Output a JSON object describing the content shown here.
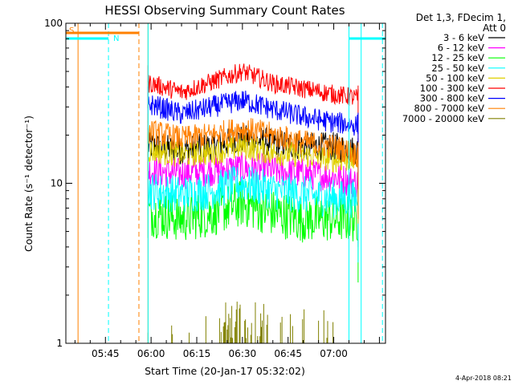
{
  "chart_data": {
    "type": "line",
    "title": "HESSI Observing Summary Count Rates",
    "xlabel": "Start Time (20-Jan-17 05:32:02)",
    "ylabel": "Count Rate (s⁻¹ detector⁻¹)",
    "yscale": "log",
    "ylim": [
      1,
      100
    ],
    "xlim": [
      "05:32",
      "07:17"
    ],
    "y_ticks": [
      "1",
      "10",
      "100"
    ],
    "x_ticks": [
      "05:45",
      "06:00",
      "06:15",
      "06:30",
      "06:45",
      "07:00"
    ],
    "legend_title": [
      "Det 1,3, FDecim 1,",
      "Att 0"
    ],
    "legend_position": "right",
    "timestamp": "4-Apr-2018 08:21",
    "flags": [
      {
        "label": "S",
        "color": "#ff8000",
        "x_start": "05:32",
        "x_end": "05:56"
      },
      {
        "label": "N",
        "color": "#00ffff",
        "x_start": "05:32",
        "x_end": "05:46"
      },
      {
        "label": "",
        "color": "#00ffff",
        "x_start": "07:05",
        "x_end": "07:17"
      }
    ],
    "vertical_lines": [
      {
        "time": "05:36",
        "color": "#ff8000",
        "style": "solid"
      },
      {
        "time": "05:46",
        "color": "#00ffff",
        "style": "dashed"
      },
      {
        "time": "05:56",
        "color": "#ff8000",
        "style": "dashed"
      },
      {
        "time": "05:59",
        "color": "#ff8000",
        "style": "solid"
      },
      {
        "time": "05:59",
        "color": "#00ffff",
        "style": "solid"
      },
      {
        "time": "07:05",
        "color": "#00ffff",
        "style": "solid"
      },
      {
        "time": "07:09",
        "color": "#00ffff",
        "style": "solid"
      },
      {
        "time": "07:16",
        "color": "#00ffff",
        "style": "dashed"
      }
    ],
    "data_start": "05:59",
    "data_end": "07:08",
    "x": [
      "06:00",
      "06:10",
      "06:20",
      "06:30",
      "06:40",
      "06:50",
      "07:00",
      "07:08"
    ],
    "series": [
      {
        "name": "3 - 6 keV",
        "color": "#000000",
        "values": [
          17,
          16,
          17,
          19,
          18,
          17,
          17,
          16
        ]
      },
      {
        "name": "6 - 12 keV",
        "color": "#ff00ff",
        "values": [
          12,
          11.5,
          12,
          12.5,
          12,
          11.5,
          11,
          10
        ]
      },
      {
        "name": "12 - 25 keV",
        "color": "#00ff00",
        "values": [
          6.5,
          6,
          6.5,
          7.5,
          6.5,
          6,
          6,
          6
        ]
      },
      {
        "name": "25 - 50 keV",
        "color": "#00ffff",
        "values": [
          9,
          8.5,
          9,
          10,
          9,
          8.5,
          8,
          8
        ]
      },
      {
        "name": "50 - 100 keV",
        "color": "#e0d000",
        "values": [
          16,
          15,
          15.5,
          17,
          15.5,
          15,
          14,
          14
        ]
      },
      {
        "name": "100 - 300 keV",
        "color": "#ff0000",
        "values": [
          42,
          37,
          43,
          50,
          42,
          39,
          36,
          34
        ]
      },
      {
        "name": "300 - 800 keV",
        "color": "#0000ff",
        "values": [
          31,
          27,
          30,
          33,
          29,
          26,
          24,
          23
        ]
      },
      {
        "name": "800 - 7000 keV",
        "color": "#ff8000",
        "values": [
          21,
          19,
          20,
          22,
          20,
          18,
          17,
          15
        ]
      },
      {
        "name": "7000 - 20000 keV",
        "color": "#808000",
        "values": [
          1,
          1,
          1,
          1,
          1,
          1,
          1,
          1
        ]
      }
    ]
  }
}
